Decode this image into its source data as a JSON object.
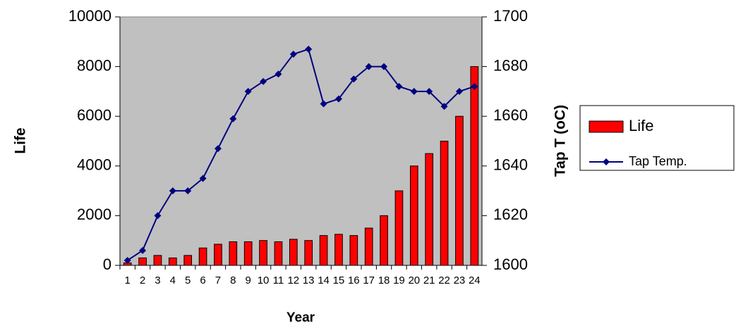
{
  "chart_data": {
    "type": "bar_line",
    "x_label": "Year",
    "y_label": "Life",
    "y2_label": "Tap T (oC)",
    "categories": [
      "1",
      "2",
      "3",
      "4",
      "5",
      "6",
      "7",
      "8",
      "9",
      "10",
      "11",
      "12",
      "13",
      "14",
      "15",
      "16",
      "17",
      "18",
      "19",
      "20",
      "21",
      "22",
      "23",
      "24"
    ],
    "series": [
      {
        "name": "Life",
        "type": "bar",
        "color": "#ff0000",
        "values": [
          100,
          300,
          400,
          300,
          400,
          700,
          850,
          950,
          950,
          1000,
          950,
          1050,
          1000,
          1200,
          1250,
          1200,
          1500,
          2000,
          3000,
          4000,
          4500,
          5000,
          6000,
          8000
        ]
      },
      {
        "name": "Tap Temp.",
        "type": "line",
        "axis": "y2",
        "color": "#000080",
        "values": [
          1602,
          1606,
          1620,
          1630,
          1630,
          1635,
          1647,
          1659,
          1670,
          1674,
          1677,
          1685,
          1687,
          1665,
          1667,
          1675,
          1680,
          1680,
          1672,
          1670,
          1670,
          1664,
          1670,
          1672
        ]
      }
    ],
    "ylim": [
      0,
      10000
    ],
    "yticks": [
      0,
      2000,
      4000,
      6000,
      8000,
      10000
    ],
    "y2lim": [
      1600,
      1700
    ],
    "y2ticks": [
      1600,
      1620,
      1640,
      1660,
      1680,
      1700
    ],
    "legend": "right"
  }
}
